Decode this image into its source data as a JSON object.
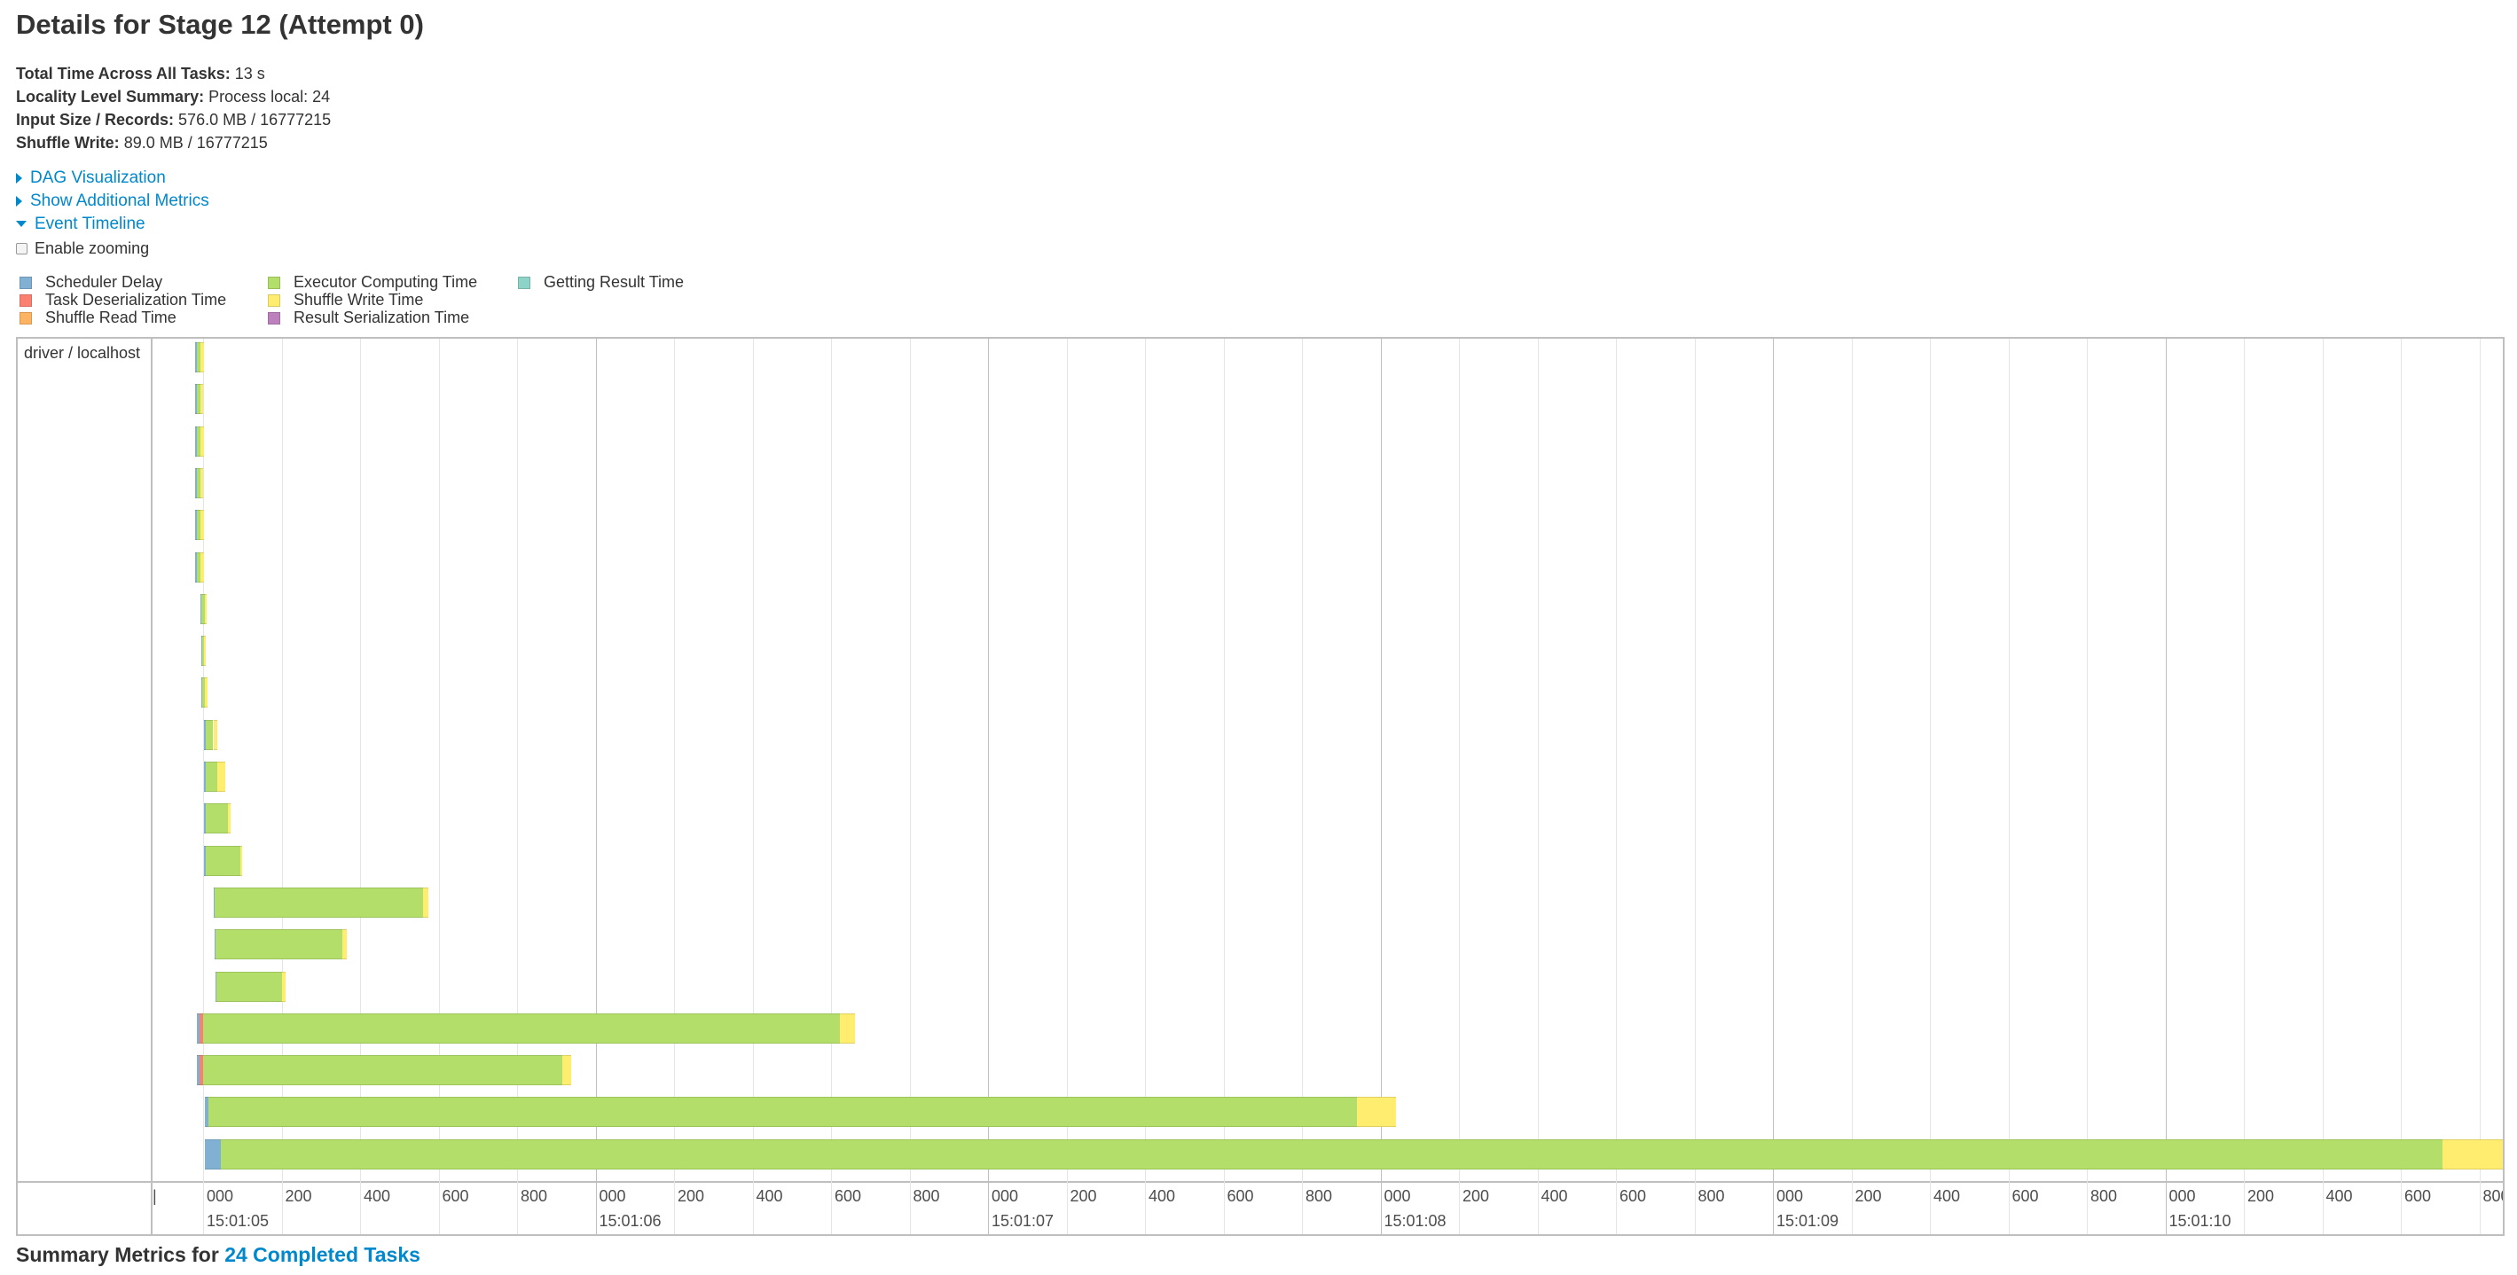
{
  "page": {
    "title": "Details for Stage 12 (Attempt 0)"
  },
  "summary": [
    {
      "label": "Total Time Across All Tasks:",
      "value": "13 s"
    },
    {
      "label": "Locality Level Summary:",
      "value": "Process local: 24"
    },
    {
      "label": "Input Size / Records:",
      "value": "576.0 MB / 16777215"
    },
    {
      "label": "Shuffle Write:",
      "value": "89.0 MB / 16777215"
    }
  ],
  "links": {
    "dag": "DAG Visualization",
    "metrics": "Show Additional Metrics",
    "timeline": "Event Timeline"
  },
  "zoom": {
    "label": "Enable zooming",
    "checked": false
  },
  "legend": [
    {
      "label": "Scheduler Delay",
      "color": "#80b1d3"
    },
    {
      "label": "Task Deserialization Time",
      "color": "#fb8072"
    },
    {
      "label": "Shuffle Read Time",
      "color": "#fdb462"
    },
    {
      "label": "Executor Computing Time",
      "color": "#b3de69"
    },
    {
      "label": "Shuffle Write Time",
      "color": "#ffed6f"
    },
    {
      "label": "Result Serialization Time",
      "color": "#bc80bd"
    },
    {
      "label": "Getting Result Time",
      "color": "#8dd3c7"
    }
  ],
  "timeline": {
    "group_label": "driver / localhost",
    "axis": {
      "minor_labels": [
        "000",
        "200",
        "400",
        "600",
        "800"
      ],
      "major_labels": [
        "15:01:06",
        "15:01:07",
        "15:01:08",
        "15:01:09",
        "15:01:10"
      ],
      "first_major_label": "15:01:05",
      "first_minor_partial": "|"
    },
    "tasks": [
      {
        "start": 980,
        "sched": 5,
        "deser": 0,
        "read": 0,
        "compute": 8,
        "write": 10
      },
      {
        "start": 980,
        "sched": 5,
        "deser": 0,
        "read": 0,
        "compute": 8,
        "write": 8
      },
      {
        "start": 980,
        "sched": 5,
        "deser": 0,
        "read": 0,
        "compute": 8,
        "write": 10
      },
      {
        "start": 980,
        "sched": 5,
        "deser": 0,
        "read": 0,
        "compute": 8,
        "write": 8
      },
      {
        "start": 980,
        "sched": 5,
        "deser": 0,
        "read": 0,
        "compute": 8,
        "write": 10
      },
      {
        "start": 980,
        "sched": 5,
        "deser": 0,
        "read": 0,
        "compute": 8,
        "write": 10
      },
      {
        "start": 993,
        "sched": 3,
        "deser": 0,
        "read": 0,
        "compute": 8,
        "write": 6
      },
      {
        "start": 995,
        "sched": 2,
        "deser": 0,
        "read": 0,
        "compute": 6,
        "write": 4
      },
      {
        "start": 995,
        "sched": 2,
        "deser": 0,
        "read": 0,
        "compute": 8,
        "write": 6
      },
      {
        "start": 1003,
        "sched": 3,
        "deser": 0,
        "read": 0,
        "compute": 20,
        "write": 10
      },
      {
        "start": 1003,
        "sched": 3,
        "deser": 0,
        "read": 0,
        "compute": 30,
        "write": 20
      },
      {
        "start": 1003,
        "sched": 3,
        "deser": 0,
        "read": 0,
        "compute": 57,
        "write": 6
      },
      {
        "start": 1003,
        "sched": 3,
        "deser": 0,
        "read": 0,
        "compute": 88,
        "write": 6
      },
      {
        "start": 1027,
        "sched": 3,
        "deser": 0,
        "read": 0,
        "compute": 530,
        "write": 15
      },
      {
        "start": 1029,
        "sched": 3,
        "deser": 0,
        "read": 0,
        "compute": 322,
        "write": 12
      },
      {
        "start": 1031,
        "sched": 3,
        "deser": 0,
        "read": 0,
        "compute": 167,
        "write": 10
      },
      {
        "start": 985,
        "sched": 6,
        "deser": 8,
        "read": 0,
        "compute": 1623,
        "write": 38
      },
      {
        "start": 985,
        "sched": 6,
        "deser": 8,
        "read": 0,
        "compute": 917,
        "write": 22
      },
      {
        "start": 1005,
        "sched": 8,
        "deser": 0,
        "read": 0,
        "compute": 2927,
        "write": 100
      },
      {
        "start": 1005,
        "sched": 40,
        "deser": 0,
        "read": 0,
        "compute": 5662,
        "write": 256
      }
    ]
  }
}
